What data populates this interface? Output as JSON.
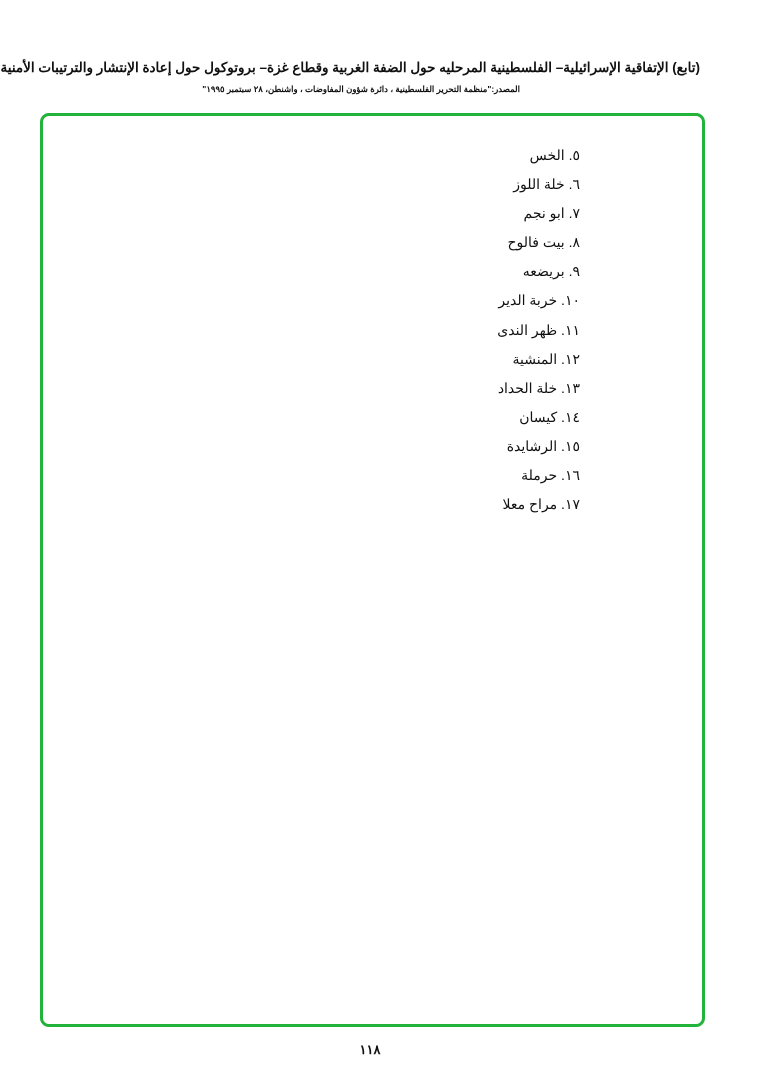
{
  "header": {
    "title": "(تابع) الإتفاقية الإسرائيلية– الفلسطينية المرحليه حول الضفة الغربية وقطاع غزة– بروتوكول حول إعادة الإنتشار والترتيبات الأمنية",
    "source": "المصدر:\"منظمة التحرير الفلسطينية ، دائرة شؤون المفاوضات ، واشنطن، ٢٨ سبتمبر ١٩٩٥\""
  },
  "frame_color": "#22b33a",
  "items": [
    "٥. الخس",
    "٦. خلة اللوز",
    "٧. ابو نجم",
    "٨. بيت فالوح",
    "٩. بريضعه",
    "١٠. خربة الدير",
    "١١. ظهر الندى",
    "١٢. المنشية",
    "١٣. خلة الحداد",
    "١٤. كيسان",
    "١٥. الرشايدة",
    "١٦. حرملة",
    "١٧. مراح معلا"
  ],
  "page_number": "١١٨"
}
